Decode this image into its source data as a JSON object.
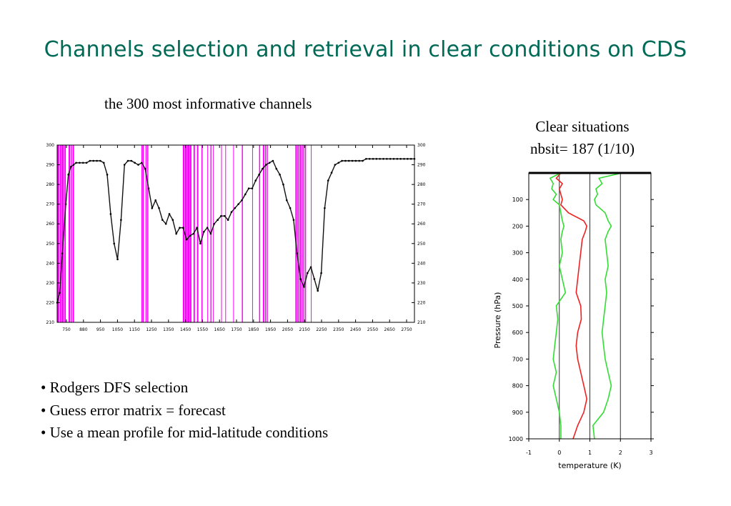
{
  "slide": {
    "title": "Channels selection and retrieval in clear conditions on CDS",
    "left_caption": "the 300 most informative channels",
    "right_caption_line1": "Clear situations",
    "right_caption_line2": "nbsit= 187 (1/10)",
    "bullets": [
      "• Rodgers DFS selection",
      "• Guess error matrix = forecast",
      "• Use a mean profile for mid-latitude conditions"
    ]
  },
  "chart_data": [
    {
      "type": "line",
      "x_tick_labels": [
        "750",
        "880",
        "950",
        "1050",
        "1150",
        "1250",
        "1350",
        "1450",
        "1550",
        "1650",
        "1750",
        "1850",
        "1950",
        "2050",
        "2150",
        "2250",
        "2350",
        "2450",
        "2550",
        "2650",
        "2750"
      ],
      "y_tick_labels": [
        "300",
        "290",
        "280",
        "270",
        "260",
        "250",
        "240",
        "230",
        "220",
        "210"
      ],
      "xlim": [
        710,
        2780
      ],
      "ylim": [
        210,
        300
      ],
      "grid": false,
      "series": [
        {
          "x": [
            710,
            725,
            740,
            760,
            775,
            790,
            805,
            820,
            840,
            860,
            880,
            900,
            920,
            940,
            960,
            980,
            1000,
            1020,
            1040,
            1060,
            1080,
            1100,
            1120,
            1140,
            1160,
            1180,
            1200,
            1220,
            1240,
            1260,
            1280,
            1300,
            1320,
            1340,
            1360,
            1380,
            1400,
            1420,
            1440,
            1460,
            1480,
            1500,
            1520,
            1540,
            1560,
            1580,
            1600,
            1620,
            1640,
            1660,
            1680,
            1700,
            1720,
            1740,
            1760,
            1780,
            1800,
            1820,
            1840,
            1860,
            1880,
            1900,
            1920,
            1940,
            1960,
            1980,
            2000,
            2020,
            2040,
            2060,
            2080,
            2100,
            2120,
            2140,
            2160,
            2180,
            2200,
            2220,
            2240,
            2260,
            2280,
            2300,
            2320,
            2340,
            2360,
            2380,
            2400,
            2420,
            2440,
            2460,
            2480,
            2500,
            2520,
            2540,
            2560,
            2580,
            2600,
            2620,
            2640,
            2660,
            2680,
            2700,
            2720,
            2740,
            2760,
            2780
          ],
          "y": [
            220,
            225,
            245,
            270,
            285,
            289,
            290,
            291,
            291,
            291,
            291,
            292,
            292,
            292,
            292,
            291,
            285,
            265,
            250,
            242,
            262,
            290,
            292,
            292,
            291,
            290,
            291,
            288,
            278,
            268,
            272,
            268,
            262,
            260,
            265,
            262,
            255,
            258,
            258,
            252,
            254,
            255,
            258,
            250,
            256,
            258,
            255,
            260,
            262,
            264,
            264,
            262,
            266,
            268,
            270,
            272,
            275,
            278,
            278,
            282,
            285,
            288,
            290,
            291,
            292,
            288,
            285,
            280,
            272,
            268,
            262,
            245,
            232,
            228,
            235,
            238,
            232,
            226,
            235,
            268,
            282,
            286,
            290,
            291,
            292,
            292,
            292,
            292,
            292,
            292,
            292,
            293,
            293,
            293,
            293,
            293,
            293,
            293,
            293,
            293,
            293,
            293,
            293,
            293,
            293,
            293
          ]
        }
      ],
      "highlight_color": "#ff00ff",
      "highlighted_channel_ranges": [
        [
          712,
          722
        ],
        [
          726,
          734
        ],
        [
          736,
          748
        ],
        [
          752,
          760
        ],
        [
          776,
          786
        ],
        [
          790,
          796
        ],
        [
          800,
          808
        ],
        [
          1198,
          1204
        ],
        [
          1206,
          1212
        ],
        [
          1222,
          1228
        ],
        [
          1232,
          1238
        ],
        [
          1438,
          1448
        ],
        [
          1450,
          1462
        ],
        [
          1464,
          1476
        ],
        [
          1478,
          1488
        ],
        [
          1500,
          1508
        ],
        [
          1520,
          1528
        ],
        [
          1546,
          1552
        ],
        [
          1580,
          1584
        ],
        [
          1598,
          1604
        ],
        [
          1612,
          1616
        ],
        [
          1660,
          1664
        ],
        [
          1684,
          1688
        ],
        [
          1730,
          1734
        ],
        [
          1780,
          1786
        ],
        [
          1840,
          1844
        ],
        [
          1880,
          1886
        ],
        [
          1902,
          1910
        ],
        [
          1914,
          1920
        ],
        [
          1924,
          1930
        ],
        [
          2090,
          2098
        ],
        [
          2102,
          2110
        ],
        [
          2114,
          2122
        ],
        [
          2126,
          2132
        ],
        [
          2136,
          2142
        ],
        [
          2146,
          2152
        ],
        [
          2180,
          2184
        ]
      ]
    },
    {
      "type": "line",
      "xlabel": "temperature (K)",
      "ylabel": "Pressure (hPa)",
      "xlim": [
        -1,
        3
      ],
      "ylim": [
        1000,
        0
      ],
      "x_tick_labels": [
        "-1",
        "0",
        "1",
        "2",
        "3"
      ],
      "y_tick_labels": [
        "100",
        "200",
        "300",
        "400",
        "500",
        "600",
        "700",
        "800",
        "900",
        "1000"
      ],
      "reference_lines_x": [
        0,
        1,
        2
      ],
      "series": [
        {
          "color": "#ee2222",
          "pressure": [
            0,
            20,
            40,
            60,
            80,
            100,
            120,
            150,
            180,
            200,
            220,
            250,
            300,
            350,
            400,
            450,
            500,
            550,
            600,
            650,
            700,
            750,
            800,
            850,
            900,
            950,
            1000
          ],
          "values": [
            0.05,
            -0.1,
            0.1,
            0.0,
            0.05,
            0.1,
            0.05,
            0.3,
            0.8,
            0.9,
            0.85,
            0.75,
            0.7,
            0.65,
            0.6,
            0.55,
            0.7,
            0.72,
            0.6,
            0.55,
            0.6,
            0.7,
            0.8,
            0.9,
            0.8,
            0.6,
            0.45
          ]
        },
        {
          "color": "#33dd33",
          "pressure": [
            0,
            20,
            40,
            60,
            80,
            100,
            120,
            150,
            180,
            200,
            220,
            250,
            300,
            350,
            400,
            450,
            500,
            550,
            600,
            650,
            700,
            750,
            800,
            850,
            900,
            950,
            1000
          ],
          "values": [
            2.05,
            1.3,
            1.4,
            1.2,
            1.25,
            1.15,
            1.2,
            1.5,
            1.6,
            1.7,
            1.6,
            1.5,
            1.55,
            1.6,
            1.5,
            1.55,
            1.5,
            1.45,
            1.4,
            1.45,
            1.5,
            1.6,
            1.7,
            1.6,
            1.45,
            1.1,
            1.15
          ]
        },
        {
          "color": "#33dd33",
          "pressure": [
            0,
            20,
            40,
            60,
            80,
            100,
            120,
            150,
            180,
            200,
            220,
            250,
            300,
            350,
            400,
            450,
            500,
            550,
            600,
            650,
            700,
            750,
            800,
            850,
            900,
            950,
            1000
          ],
          "values": [
            0.05,
            -0.3,
            -0.2,
            -0.25,
            -0.1,
            -0.2,
            0.0,
            0.05,
            0.1,
            0.15,
            0.1,
            0.05,
            0.1,
            0.0,
            0.1,
            0.2,
            -0.1,
            -0.05,
            -0.1,
            -0.15,
            -0.2,
            -0.1,
            -0.2,
            -0.1,
            0.0,
            0.05,
            0.05
          ]
        }
      ]
    }
  ]
}
